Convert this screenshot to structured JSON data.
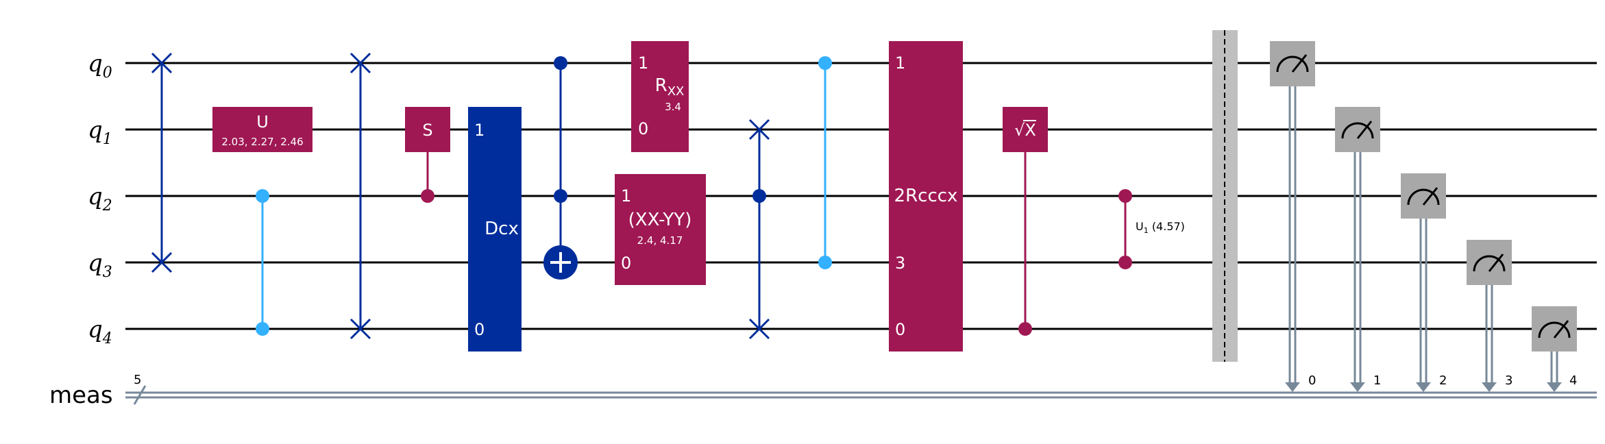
{
  "colors": {
    "wire": "#000000",
    "classical": "#778899",
    "magenta": "#9f1853",
    "blue": "#002d9c",
    "lightblue": "#33b1ff",
    "gray": "#a8a8a8",
    "barrier": "#bfbfbf",
    "white": "#ffffff"
  },
  "qubits": [
    {
      "name": "q",
      "index": "0"
    },
    {
      "name": "q",
      "index": "1"
    },
    {
      "name": "q",
      "index": "2"
    },
    {
      "name": "q",
      "index": "3"
    },
    {
      "name": "q",
      "index": "4"
    }
  ],
  "classical_register": {
    "label": "meas",
    "size": "5",
    "bits": [
      "0",
      "1",
      "2",
      "3",
      "4"
    ]
  },
  "gates": {
    "u": {
      "label": "U",
      "params": "2.03, 2.27, 2.46"
    },
    "s": {
      "label": "S"
    },
    "dcx": {
      "label": "Dcx",
      "top_pin": "1",
      "bottom_pin": "0"
    },
    "rxx": {
      "label": "R",
      "sub": "XX",
      "param": "3.4",
      "top_pin": "1",
      "bottom_pin": "0"
    },
    "xxyy": {
      "label": "(XX-YY)",
      "params": "2.4, 4.17",
      "top_pin": "1",
      "bottom_pin": "0"
    },
    "rcccx": {
      "label": "2Rcccx",
      "pin_q0": "1",
      "pin_q3": "3",
      "pin_q4": "0"
    },
    "sx": {
      "label": "X",
      "radical": "√"
    },
    "cu1": {
      "label": "U",
      "sub": "1",
      "param": "(4.57)"
    }
  },
  "icons": {
    "measure": "measure-meter-icon",
    "swap": "swap-cross-icon",
    "target": "cnot-target-icon"
  }
}
